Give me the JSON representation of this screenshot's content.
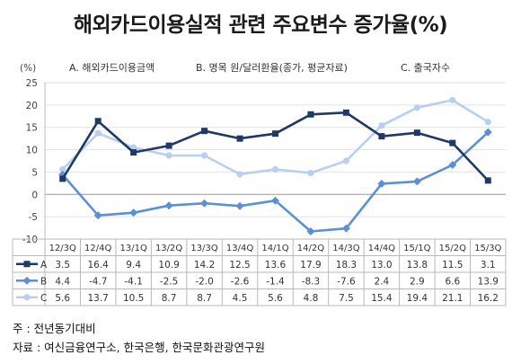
{
  "title": "해외카드이용실적 관련 주요변수 증가율(%)",
  "chart_data": {
    "type": "line",
    "unit_label": "(%)",
    "categories": [
      "12/3Q",
      "12/4Q",
      "13/1Q",
      "13/2Q",
      "13/3Q",
      "13/4Q",
      "14/1Q",
      "14/2Q",
      "14/3Q",
      "14/4Q",
      "15/1Q",
      "15/2Q",
      "15/3Q"
    ],
    "ylim": [
      -10,
      25
    ],
    "yticks": [
      "25",
      "20",
      "15",
      "10",
      "5",
      "0",
      "-5",
      "-10"
    ],
    "series_headers": [
      "A. 해외카드이용금액",
      "B. 명목 원/달러환율(종가, 평균자료)",
      "C. 출국자수"
    ],
    "series": [
      {
        "name": "A",
        "color": "#1f3864",
        "marker": "square",
        "values": [
          3.5,
          16.4,
          9.4,
          10.9,
          14.2,
          12.5,
          13.6,
          17.9,
          18.3,
          13.0,
          13.8,
          11.5,
          3.1
        ],
        "labels": [
          "3.5",
          "16.4",
          "9.4",
          "10.9",
          "14.2",
          "12.5",
          "13.6",
          "17.9",
          "18.3",
          "13.0",
          "13.8",
          "11.5",
          "3.1"
        ]
      },
      {
        "name": "B",
        "color": "#5b8fd6",
        "marker": "diamond",
        "values": [
          4.4,
          -4.7,
          -4.1,
          -2.5,
          -2.0,
          -2.6,
          -1.4,
          -8.3,
          -7.6,
          2.4,
          2.9,
          6.6,
          13.9
        ],
        "labels": [
          "4.4",
          "-4.7",
          "-4.1",
          "-2.5",
          "-2.0",
          "-2.6",
          "-1.4",
          "-8.3",
          "-7.6",
          "2.4",
          "2.9",
          "6.6",
          "13.9"
        ]
      },
      {
        "name": "C",
        "color": "#b7cff0",
        "marker": "circle",
        "values": [
          5.6,
          13.7,
          10.5,
          8.7,
          8.7,
          4.5,
          5.6,
          4.8,
          7.5,
          15.4,
          19.4,
          21.1,
          16.2
        ],
        "labels": [
          "5.6",
          "13.7",
          "10.5",
          "8.7",
          "8.7",
          "4.5",
          "5.6",
          "4.8",
          "7.5",
          "15.4",
          "19.4",
          "21.1",
          "16.2"
        ]
      }
    ]
  },
  "notes": {
    "line1": "주 : 전년동기대비",
    "line2": "자료 : 여신금융연구소, 한국은행, 한국문화관광연구원"
  }
}
